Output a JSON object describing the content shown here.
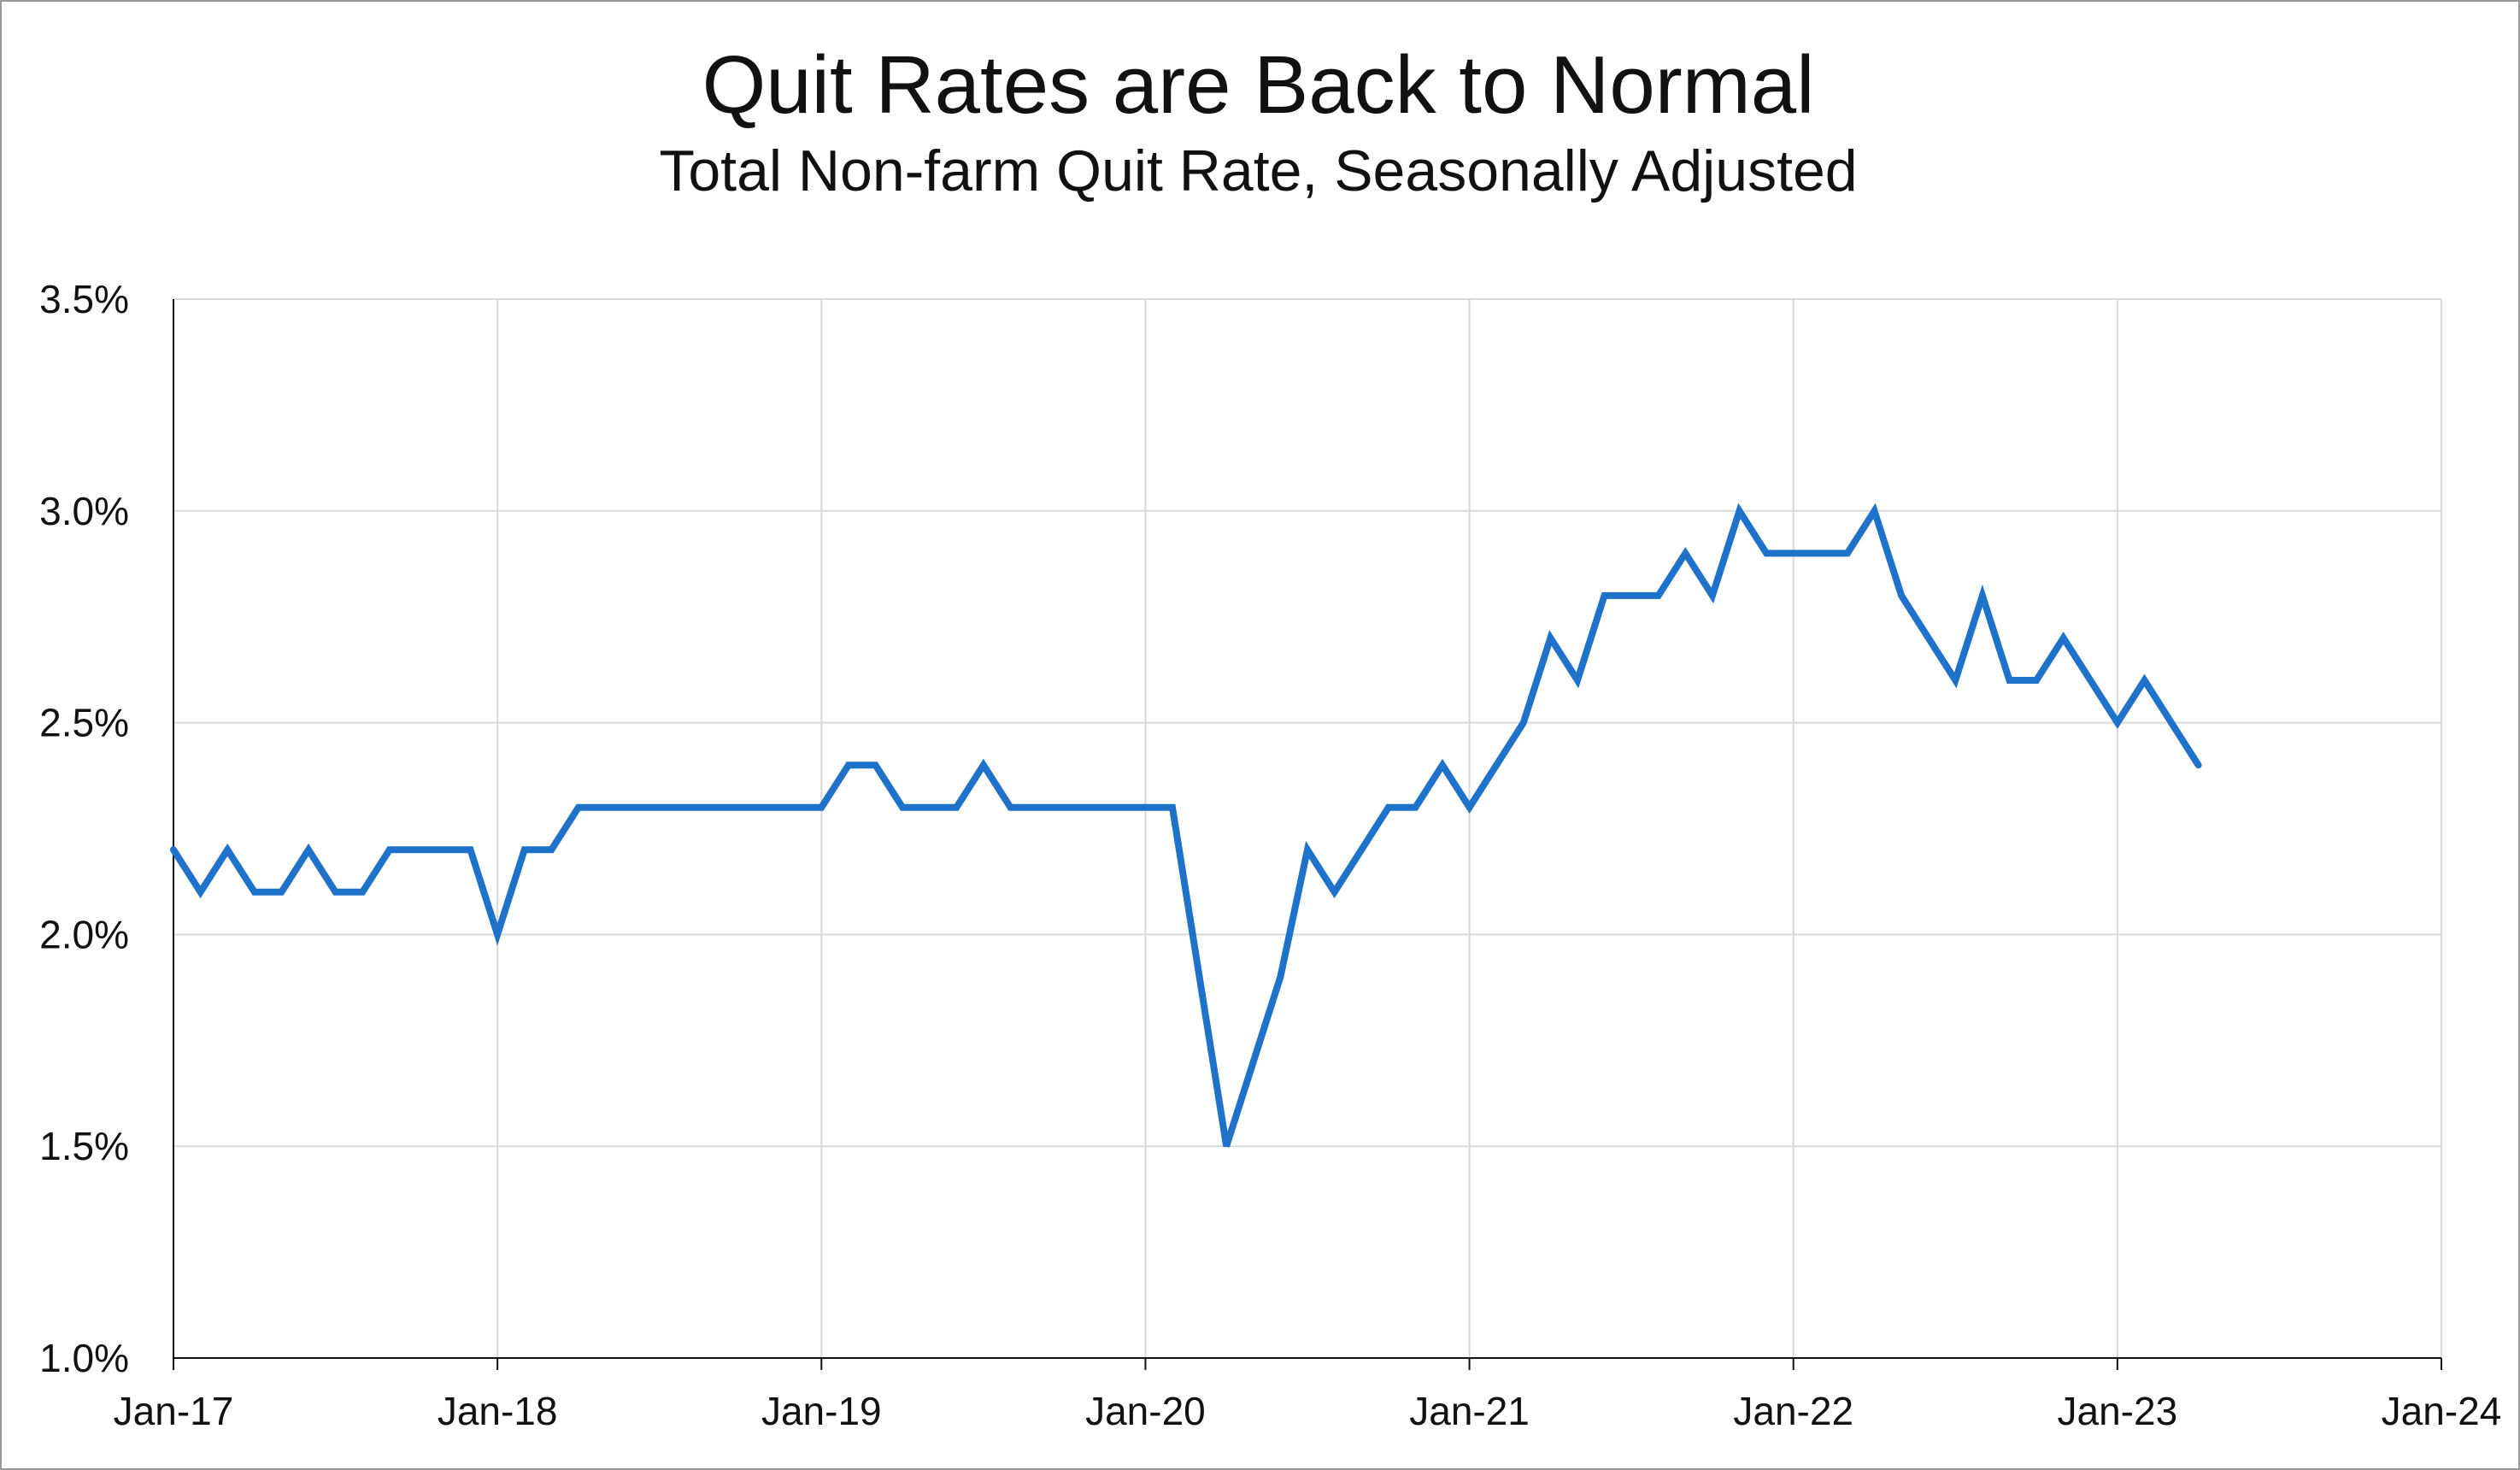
{
  "chart_data": {
    "type": "line",
    "title": "Quit Rates are Back to Normal",
    "subtitle": "Total Non-farm Quit Rate, Seasonally Adjusted",
    "xlabel": "",
    "ylabel": "",
    "x_ticks": [
      "Jan-17",
      "Jan-18",
      "Jan-19",
      "Jan-20",
      "Jan-21",
      "Jan-22",
      "Jan-23",
      "Jan-24"
    ],
    "y_ticks": [
      "1.0%",
      "1.5%",
      "2.0%",
      "2.5%",
      "3.0%",
      "3.5%"
    ],
    "ylim": [
      1.0,
      3.5
    ],
    "xlim": [
      "2017-01",
      "2024-01"
    ],
    "grid": true,
    "legend": "none",
    "series": [
      {
        "color": "#1f72c9",
        "x": [
          "2017-01",
          "2017-02",
          "2017-03",
          "2017-04",
          "2017-05",
          "2017-06",
          "2017-07",
          "2017-08",
          "2017-09",
          "2017-10",
          "2017-11",
          "2017-12",
          "2018-01",
          "2018-02",
          "2018-03",
          "2018-04",
          "2018-05",
          "2018-06",
          "2018-07",
          "2018-08",
          "2018-09",
          "2018-10",
          "2018-11",
          "2018-12",
          "2019-01",
          "2019-02",
          "2019-03",
          "2019-04",
          "2019-05",
          "2019-06",
          "2019-07",
          "2019-08",
          "2019-09",
          "2019-10",
          "2019-11",
          "2019-12",
          "2020-01",
          "2020-02",
          "2020-03",
          "2020-04",
          "2020-05",
          "2020-06",
          "2020-07",
          "2020-08",
          "2020-09",
          "2020-10",
          "2020-11",
          "2020-12",
          "2021-01",
          "2021-02",
          "2021-03",
          "2021-04",
          "2021-05",
          "2021-06",
          "2021-07",
          "2021-08",
          "2021-09",
          "2021-10",
          "2021-11",
          "2021-12",
          "2022-01",
          "2022-02",
          "2022-03",
          "2022-04",
          "2022-05",
          "2022-06",
          "2022-07",
          "2022-08",
          "2022-09",
          "2022-10",
          "2022-11",
          "2022-12",
          "2023-01",
          "2023-02",
          "2023-03",
          "2023-04"
        ],
        "values": [
          2.2,
          2.1,
          2.2,
          2.1,
          2.1,
          2.2,
          2.1,
          2.1,
          2.2,
          2.2,
          2.2,
          2.2,
          2.0,
          2.2,
          2.2,
          2.3,
          2.3,
          2.3,
          2.3,
          2.3,
          2.3,
          2.3,
          2.3,
          2.3,
          2.3,
          2.4,
          2.4,
          2.3,
          2.3,
          2.3,
          2.4,
          2.3,
          2.3,
          2.3,
          2.3,
          2.3,
          2.3,
          2.3,
          1.9,
          1.5,
          1.7,
          1.9,
          2.2,
          2.1,
          2.2,
          2.3,
          2.3,
          2.4,
          2.3,
          2.4,
          2.5,
          2.7,
          2.6,
          2.8,
          2.8,
          2.8,
          2.9,
          2.8,
          3.0,
          2.9,
          2.9,
          2.9,
          2.9,
          3.0,
          2.8,
          2.7,
          2.6,
          2.8,
          2.6,
          2.6,
          2.7,
          2.6,
          2.5,
          2.6,
          2.5,
          2.4
        ]
      }
    ]
  }
}
